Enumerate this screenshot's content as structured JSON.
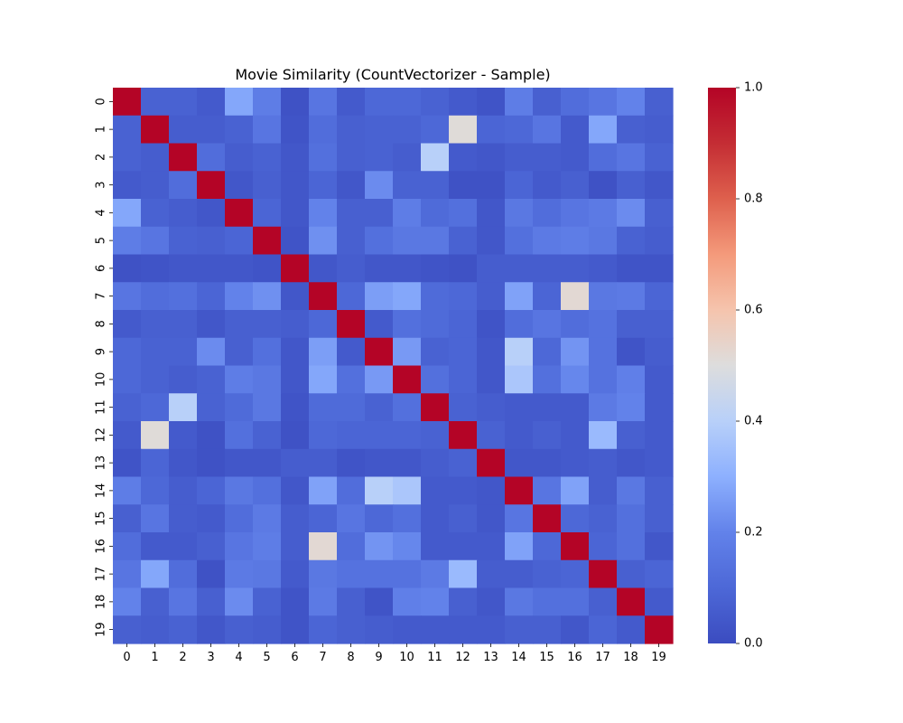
{
  "chart_data": {
    "type": "heatmap",
    "title": "Movie Similarity (CountVectorizer - Sample)",
    "xlabel": "",
    "ylabel": "",
    "x_labels": [
      "0",
      "1",
      "2",
      "3",
      "4",
      "5",
      "6",
      "7",
      "8",
      "9",
      "10",
      "11",
      "12",
      "13",
      "14",
      "15",
      "16",
      "17",
      "18",
      "19"
    ],
    "y_labels": [
      "0",
      "1",
      "2",
      "3",
      "4",
      "5",
      "6",
      "7",
      "8",
      "9",
      "10",
      "11",
      "12",
      "13",
      "14",
      "15",
      "16",
      "17",
      "18",
      "19"
    ],
    "colormap": "coolwarm",
    "value_range": [
      0.0,
      1.0
    ],
    "colorbar_ticks": [
      "0.0",
      "0.2",
      "0.4",
      "0.6",
      "0.8",
      "1.0"
    ],
    "colorbar_tick_values": [
      0.0,
      0.2,
      0.4,
      0.6,
      0.8,
      1.0
    ],
    "values": [
      [
        1.0,
        0.08,
        0.08,
        0.05,
        0.28,
        0.18,
        0.02,
        0.15,
        0.05,
        0.1,
        0.1,
        0.08,
        0.05,
        0.03,
        0.18,
        0.07,
        0.12,
        0.15,
        0.2,
        0.07
      ],
      [
        0.08,
        1.0,
        0.06,
        0.06,
        0.08,
        0.15,
        0.03,
        0.12,
        0.07,
        0.08,
        0.08,
        0.1,
        0.51,
        0.09,
        0.1,
        0.15,
        0.05,
        0.28,
        0.07,
        0.06
      ],
      [
        0.08,
        0.06,
        1.0,
        0.12,
        0.06,
        0.08,
        0.04,
        0.13,
        0.07,
        0.08,
        0.06,
        0.4,
        0.05,
        0.04,
        0.06,
        0.06,
        0.05,
        0.12,
        0.15,
        0.08
      ],
      [
        0.05,
        0.06,
        0.12,
        1.0,
        0.04,
        0.07,
        0.04,
        0.09,
        0.04,
        0.22,
        0.08,
        0.08,
        0.02,
        0.02,
        0.09,
        0.05,
        0.07,
        0.02,
        0.07,
        0.04
      ],
      [
        0.28,
        0.08,
        0.06,
        0.04,
        1.0,
        0.09,
        0.04,
        0.2,
        0.07,
        0.07,
        0.18,
        0.11,
        0.13,
        0.04,
        0.16,
        0.12,
        0.15,
        0.17,
        0.22,
        0.07
      ],
      [
        0.18,
        0.15,
        0.08,
        0.07,
        0.09,
        1.0,
        0.03,
        0.23,
        0.07,
        0.13,
        0.16,
        0.16,
        0.08,
        0.04,
        0.13,
        0.17,
        0.18,
        0.16,
        0.08,
        0.06
      ],
      [
        0.02,
        0.03,
        0.04,
        0.04,
        0.04,
        0.03,
        1.0,
        0.04,
        0.06,
        0.04,
        0.04,
        0.03,
        0.02,
        0.06,
        0.06,
        0.06,
        0.06,
        0.05,
        0.03,
        0.03
      ],
      [
        0.15,
        0.12,
        0.13,
        0.09,
        0.2,
        0.23,
        0.04,
        1.0,
        0.1,
        0.26,
        0.28,
        0.11,
        0.1,
        0.06,
        0.27,
        0.09,
        0.52,
        0.16,
        0.17,
        0.09
      ],
      [
        0.05,
        0.07,
        0.07,
        0.04,
        0.07,
        0.07,
        0.06,
        0.1,
        1.0,
        0.05,
        0.13,
        0.11,
        0.09,
        0.03,
        0.12,
        0.15,
        0.12,
        0.14,
        0.07,
        0.07
      ],
      [
        0.1,
        0.08,
        0.08,
        0.22,
        0.07,
        0.13,
        0.04,
        0.26,
        0.05,
        1.0,
        0.25,
        0.08,
        0.09,
        0.04,
        0.4,
        0.1,
        0.24,
        0.14,
        0.03,
        0.06
      ],
      [
        0.1,
        0.08,
        0.06,
        0.08,
        0.18,
        0.16,
        0.04,
        0.28,
        0.13,
        0.25,
        1.0,
        0.13,
        0.09,
        0.04,
        0.37,
        0.13,
        0.21,
        0.14,
        0.19,
        0.05
      ],
      [
        0.08,
        0.1,
        0.4,
        0.08,
        0.11,
        0.16,
        0.03,
        0.11,
        0.11,
        0.08,
        0.13,
        1.0,
        0.08,
        0.06,
        0.05,
        0.05,
        0.05,
        0.17,
        0.2,
        0.05
      ],
      [
        0.05,
        0.51,
        0.05,
        0.02,
        0.13,
        0.08,
        0.02,
        0.1,
        0.09,
        0.09,
        0.09,
        0.08,
        1.0,
        0.08,
        0.05,
        0.07,
        0.05,
        0.33,
        0.07,
        0.05
      ],
      [
        0.03,
        0.09,
        0.04,
        0.02,
        0.04,
        0.04,
        0.06,
        0.06,
        0.03,
        0.04,
        0.04,
        0.06,
        0.08,
        1.0,
        0.04,
        0.04,
        0.05,
        0.06,
        0.04,
        0.05
      ],
      [
        0.18,
        0.1,
        0.06,
        0.09,
        0.16,
        0.13,
        0.04,
        0.27,
        0.12,
        0.4,
        0.37,
        0.05,
        0.05,
        0.04,
        1.0,
        0.15,
        0.27,
        0.06,
        0.16,
        0.07
      ],
      [
        0.07,
        0.15,
        0.06,
        0.05,
        0.12,
        0.17,
        0.06,
        0.09,
        0.15,
        0.1,
        0.13,
        0.05,
        0.07,
        0.04,
        0.15,
        1.0,
        0.1,
        0.08,
        0.13,
        0.07
      ],
      [
        0.12,
        0.05,
        0.05,
        0.07,
        0.15,
        0.18,
        0.06,
        0.52,
        0.12,
        0.24,
        0.21,
        0.05,
        0.05,
        0.05,
        0.27,
        0.1,
        1.0,
        0.09,
        0.13,
        0.04
      ],
      [
        0.15,
        0.28,
        0.12,
        0.02,
        0.17,
        0.16,
        0.05,
        0.16,
        0.14,
        0.14,
        0.14,
        0.17,
        0.33,
        0.06,
        0.06,
        0.08,
        0.09,
        1.0,
        0.07,
        0.09
      ],
      [
        0.2,
        0.07,
        0.15,
        0.07,
        0.22,
        0.08,
        0.03,
        0.17,
        0.07,
        0.03,
        0.19,
        0.2,
        0.07,
        0.04,
        0.16,
        0.13,
        0.13,
        0.07,
        1.0,
        0.05
      ],
      [
        0.07,
        0.06,
        0.08,
        0.04,
        0.07,
        0.06,
        0.03,
        0.09,
        0.07,
        0.06,
        0.05,
        0.05,
        0.05,
        0.05,
        0.07,
        0.07,
        0.04,
        0.09,
        0.05,
        1.0
      ]
    ]
  }
}
